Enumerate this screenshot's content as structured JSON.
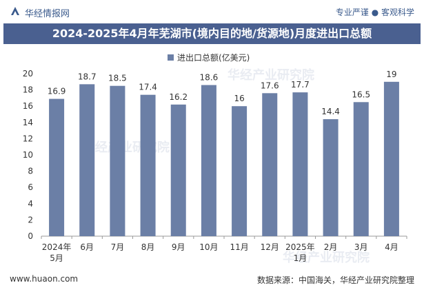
{
  "header": {
    "brand": "华经情报网",
    "tagline": "专业严谨 ● 客观科学"
  },
  "chart_data": {
    "type": "bar",
    "title": "2024-2025年4月年芜湖市(境内目的地/货源地)月度进出口总额",
    "categories": [
      [
        "2024年",
        "5月"
      ],
      [
        "6月"
      ],
      [
        "7月"
      ],
      [
        "8月"
      ],
      [
        "9月"
      ],
      [
        "10月"
      ],
      [
        "11月"
      ],
      [
        "12月"
      ],
      [
        "2025年",
        "1月"
      ],
      [
        "2月"
      ],
      [
        "3月"
      ],
      [
        "4月"
      ]
    ],
    "series": [
      {
        "name": "进出口总额(亿美元)",
        "values": [
          16.9,
          18.7,
          18.5,
          17.4,
          16.2,
          18.6,
          16,
          17.6,
          17.7,
          14.4,
          16.5,
          19
        ],
        "labels": [
          "16.9",
          "18.7",
          "18.5",
          "17.4",
          "16.2",
          "18.6",
          "16",
          "17.6",
          "17.7",
          "14.4",
          "16.5",
          "19"
        ]
      }
    ],
    "yticks": [
      "0",
      "2",
      "4",
      "6",
      "8",
      "10",
      "12",
      "14",
      "16",
      "18",
      "20"
    ],
    "ylim": [
      0,
      20
    ],
    "legend_position": "top-center",
    "bar_color": "#6b7fa6"
  },
  "footer": {
    "website": "www.huaon.com",
    "source": "数据来源：中国海关，华经产业研究院整理"
  },
  "watermark": "华经产业研究院"
}
